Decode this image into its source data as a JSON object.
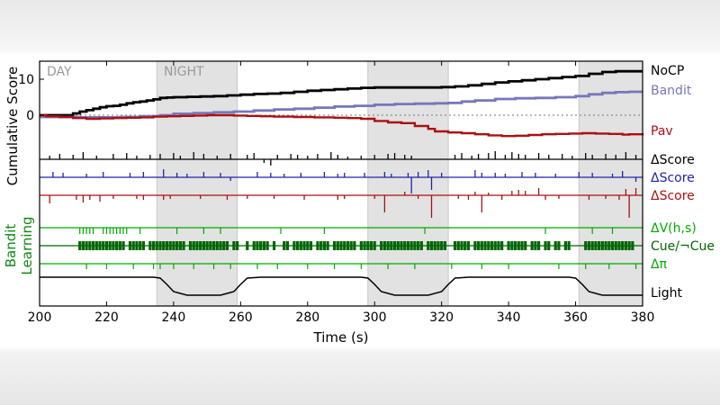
{
  "chart_data": {
    "type": "line",
    "xlabel": "Time (s)",
    "ylabel": "Cumulative Score",
    "xlim": [
      200,
      380
    ],
    "ylim": [
      -17,
      16
    ],
    "xticks": [
      200,
      220,
      240,
      260,
      280,
      300,
      320,
      340,
      360,
      380
    ],
    "yticks": [
      0,
      10
    ],
    "background_color": "#ffffff",
    "phase_labels": [
      "DAY",
      "NIGHT"
    ],
    "night_periods": [
      [
        235,
        259
      ],
      [
        298,
        322
      ],
      [
        361,
        380
      ]
    ],
    "night_color": "#e2e2e2",
    "series": [
      {
        "name": "NoCP",
        "color": "#000000",
        "x": [
          200,
          210,
          212,
          214,
          216,
          218,
          220,
          222,
          224,
          226,
          228,
          230,
          232,
          234,
          236,
          238,
          240,
          244,
          248,
          252,
          256,
          260,
          264,
          268,
          272,
          276,
          280,
          284,
          288,
          292,
          296,
          300,
          304,
          308,
          312,
          316,
          320,
          324,
          328,
          332,
          336,
          340,
          344,
          348,
          352,
          356,
          360,
          364,
          368,
          372,
          376,
          380
        ],
        "y": [
          0,
          0.5,
          1.0,
          1.4,
          1.8,
          2.2,
          2.5,
          2.6,
          2.9,
          3.3,
          3.6,
          3.8,
          4.1,
          4.4,
          4.8,
          4.9,
          5.0,
          5.1,
          5.2,
          5.3,
          5.5,
          5.7,
          5.9,
          6.0,
          6.2,
          6.5,
          6.8,
          7.0,
          7.2,
          7.4,
          7.6,
          7.7,
          7.7,
          7.7,
          7.7,
          7.7,
          7.8,
          8.0,
          8.3,
          8.7,
          9.1,
          9.4,
          9.7,
          10.0,
          10.3,
          10.6,
          10.9,
          11.5,
          12.0,
          12.2,
          12.2,
          12.2
        ]
      },
      {
        "name": "Bandit",
        "color": "#7777bb",
        "x": [
          200,
          206,
          212,
          218,
          224,
          230,
          236,
          240,
          246,
          252,
          258,
          264,
          270,
          276,
          282,
          288,
          294,
          300,
          306,
          312,
          318,
          322,
          326,
          330,
          336,
          342,
          348,
          354,
          360,
          364,
          368,
          372,
          376,
          380
        ],
        "y": [
          -0.5,
          -0.5,
          -0.6,
          -0.6,
          -0.5,
          -0.3,
          0,
          0.4,
          0.6,
          0.8,
          1.0,
          1.3,
          1.6,
          1.8,
          2.1,
          2.4,
          2.6,
          2.9,
          3.1,
          3.2,
          3.3,
          3.4,
          3.8,
          4.1,
          4.5,
          4.7,
          4.8,
          5.0,
          5.3,
          5.8,
          6.2,
          6.4,
          6.5,
          6.5
        ]
      },
      {
        "name": "Pav",
        "color": "#aa1111",
        "x": [
          200,
          202,
          206,
          210,
          214,
          218,
          222,
          226,
          230,
          234,
          238,
          242,
          246,
          250,
          254,
          258,
          262,
          266,
          270,
          276,
          282,
          288,
          292,
          296,
          300,
          304,
          308,
          312,
          316,
          318,
          322,
          326,
          330,
          334,
          338,
          342,
          346,
          350,
          354,
          358,
          362,
          366,
          370,
          374,
          376,
          380
        ],
        "y": [
          0,
          -0.3,
          -0.5,
          -0.8,
          -1.0,
          -0.9,
          -0.8,
          -0.7,
          -0.6,
          -0.4,
          -0.3,
          -0.2,
          -0.1,
          0,
          0,
          -0.1,
          -0.2,
          -0.3,
          -0.4,
          -0.5,
          -0.6,
          -0.7,
          -0.8,
          -1.0,
          -1.6,
          -2.0,
          -2.2,
          -3.0,
          -3.8,
          -4.5,
          -4.8,
          -5.0,
          -5.3,
          -5.6,
          -5.8,
          -5.7,
          -5.5,
          -5.3,
          -5.2,
          -5.1,
          -5.0,
          -5.1,
          -5.2,
          -5.4,
          -5.3,
          -5.0
        ]
      }
    ],
    "event_rows": [
      {
        "label": "ΔScore",
        "color": "#000000",
        "ticks": [
          [
            203,
            4
          ],
          [
            206,
            6
          ],
          [
            210,
            5
          ],
          [
            213,
            8
          ],
          [
            217,
            4
          ],
          [
            222,
            6
          ],
          [
            226,
            7
          ],
          [
            229,
            4
          ],
          [
            233,
            5
          ],
          [
            236,
            6
          ],
          [
            240,
            7
          ],
          [
            242,
            4
          ],
          [
            246,
            8
          ],
          [
            249,
            6
          ],
          [
            253,
            4
          ],
          [
            257,
            6
          ],
          [
            262,
            5
          ],
          [
            264,
            7
          ],
          [
            267,
            -4
          ],
          [
            269,
            -7
          ],
          [
            271,
            5
          ],
          [
            275,
            6
          ],
          [
            277,
            5
          ],
          [
            280,
            4
          ],
          [
            283,
            6
          ],
          [
            287,
            8
          ],
          [
            289,
            5
          ],
          [
            292,
            3
          ],
          [
            296,
            4
          ],
          [
            300,
            5
          ],
          [
            304,
            6
          ],
          [
            306,
            7
          ],
          [
            309,
            5
          ],
          [
            311,
            4
          ],
          [
            324,
            5
          ],
          [
            326,
            7
          ],
          [
            329,
            4
          ],
          [
            331,
            6
          ],
          [
            334,
            7
          ],
          [
            336,
            9
          ],
          [
            339,
            5
          ],
          [
            341,
            8
          ],
          [
            343,
            6
          ],
          [
            345,
            5
          ],
          [
            349,
            7
          ],
          [
            352,
            5
          ],
          [
            356,
            6
          ],
          [
            359,
            4
          ],
          [
            363,
            7
          ],
          [
            365,
            5
          ],
          [
            369,
            6
          ],
          [
            372,
            5
          ],
          [
            375,
            8
          ],
          [
            378,
            5
          ]
        ]
      },
      {
        "label": "ΔScore",
        "color": "#2222aa",
        "ticks": [
          [
            204,
            6
          ],
          [
            207,
            5
          ],
          [
            214,
            4
          ],
          [
            219,
            6
          ],
          [
            227,
            5
          ],
          [
            231,
            6
          ],
          [
            237,
            9
          ],
          [
            241,
            5
          ],
          [
            244,
            4
          ],
          [
            249,
            6
          ],
          [
            254,
            5
          ],
          [
            257,
            -4
          ],
          [
            265,
            6
          ],
          [
            269,
            5
          ],
          [
            273,
            4
          ],
          [
            278,
            5
          ],
          [
            285,
            6
          ],
          [
            289,
            4
          ],
          [
            291,
            5
          ],
          [
            297,
            5
          ],
          [
            303,
            6
          ],
          [
            305,
            4
          ],
          [
            310,
            5
          ],
          [
            311,
            -18
          ],
          [
            313,
            6
          ],
          [
            316,
            8
          ],
          [
            317,
            -14
          ],
          [
            320,
            5
          ],
          [
            330,
            8
          ],
          [
            332,
            5
          ],
          [
            336,
            5
          ],
          [
            339,
            4
          ],
          [
            344,
            6
          ],
          [
            348,
            5
          ],
          [
            354,
            4
          ],
          [
            361,
            6
          ],
          [
            365,
            5
          ],
          [
            371,
            4
          ],
          [
            374,
            7
          ],
          [
            378,
            -5
          ]
        ]
      },
      {
        "label": "ΔScore",
        "color": "#aa1111",
        "ticks": [
          [
            203,
            -9
          ],
          [
            211,
            -5
          ],
          [
            213,
            -8
          ],
          [
            215,
            -5
          ],
          [
            218,
            -7
          ],
          [
            222,
            -4
          ],
          [
            229,
            -4
          ],
          [
            231,
            -5
          ],
          [
            237,
            -5
          ],
          [
            239,
            -4
          ],
          [
            248,
            -4
          ],
          [
            256,
            -5
          ],
          [
            262,
            -4
          ],
          [
            270,
            -4
          ],
          [
            279,
            -5
          ],
          [
            289,
            -5
          ],
          [
            291,
            -4
          ],
          [
            300,
            -4
          ],
          [
            303,
            -19
          ],
          [
            309,
            4
          ],
          [
            313,
            -4
          ],
          [
            317,
            -25
          ],
          [
            325,
            -4
          ],
          [
            328,
            -5
          ],
          [
            330,
            4
          ],
          [
            332,
            -19
          ],
          [
            334,
            3
          ],
          [
            338,
            -5
          ],
          [
            341,
            5
          ],
          [
            343,
            6
          ],
          [
            345,
            5
          ],
          [
            349,
            8
          ],
          [
            351,
            -5
          ],
          [
            355,
            -4
          ],
          [
            364,
            -5
          ],
          [
            369,
            -4
          ],
          [
            373,
            -5
          ],
          [
            375,
            7
          ],
          [
            376,
            -25
          ],
          [
            378,
            8
          ]
        ]
      }
    ],
    "learning_rows": [
      {
        "label": "ΔV(h,s)",
        "color": "#00aa00",
        "ticks": [
          212,
          213,
          214,
          215,
          216,
          219,
          220,
          221,
          222,
          223,
          224,
          225,
          226,
          230,
          241,
          249,
          254,
          272,
          285,
          315,
          351,
          365,
          371
        ]
      },
      {
        "label": "Cue/¬Cue",
        "color": "#006600",
        "ticks": [
          212,
          213,
          214,
          215,
          216,
          217,
          218,
          219,
          220,
          221,
          222,
          223,
          224,
          225,
          227,
          228,
          229,
          230,
          231,
          233,
          234,
          235,
          236,
          237,
          238,
          239,
          240,
          241,
          242,
          243,
          245,
          246,
          247,
          248,
          249,
          250,
          251,
          252,
          253,
          254,
          255,
          256,
          258,
          259,
          262,
          264,
          265,
          266,
          267,
          268,
          270,
          273,
          274,
          276,
          277,
          278,
          279,
          280,
          281,
          283,
          284,
          285,
          286,
          288,
          289,
          290,
          291,
          292,
          293,
          294,
          296,
          297,
          298,
          299,
          300,
          302,
          303,
          304,
          305,
          306,
          307,
          308,
          309,
          310,
          311,
          312,
          313,
          314,
          316,
          317,
          318,
          319,
          320,
          321,
          324,
          325,
          326,
          327,
          328,
          330,
          331,
          332,
          333,
          334,
          335,
          336,
          337,
          338,
          340,
          341,
          342,
          343,
          344,
          345,
          347,
          348,
          349,
          351,
          352,
          354,
          355,
          357,
          358,
          363,
          364,
          365,
          366,
          367,
          368,
          369,
          370,
          371,
          372,
          373,
          374,
          375,
          376,
          377
        ]
      },
      {
        "label": "Δπ",
        "color": "#00aa00",
        "ticks": [
          214,
          220,
          228,
          234,
          236,
          240,
          246,
          252,
          257,
          265,
          271,
          280,
          288,
          296,
          304,
          312,
          323,
          332,
          340,
          355,
          363,
          370,
          378
        ]
      }
    ],
    "light_row": {
      "label": "Light",
      "x": [
        200,
        234,
        236,
        238,
        240,
        244,
        254,
        258,
        260,
        262,
        266,
        296,
        298,
        300,
        302,
        306,
        316,
        320,
        322,
        324,
        328,
        358,
        360,
        362,
        364,
        368,
        380
      ],
      "level": [
        1,
        1,
        0.95,
        0.6,
        0.2,
        0,
        0,
        0.2,
        0.6,
        0.95,
        1,
        1,
        0.95,
        0.6,
        0.2,
        0,
        0,
        0.2,
        0.6,
        0.95,
        1,
        1,
        0.95,
        0.6,
        0.2,
        0,
        0
      ]
    },
    "group_label": [
      "Bandit",
      "Learning"
    ]
  }
}
